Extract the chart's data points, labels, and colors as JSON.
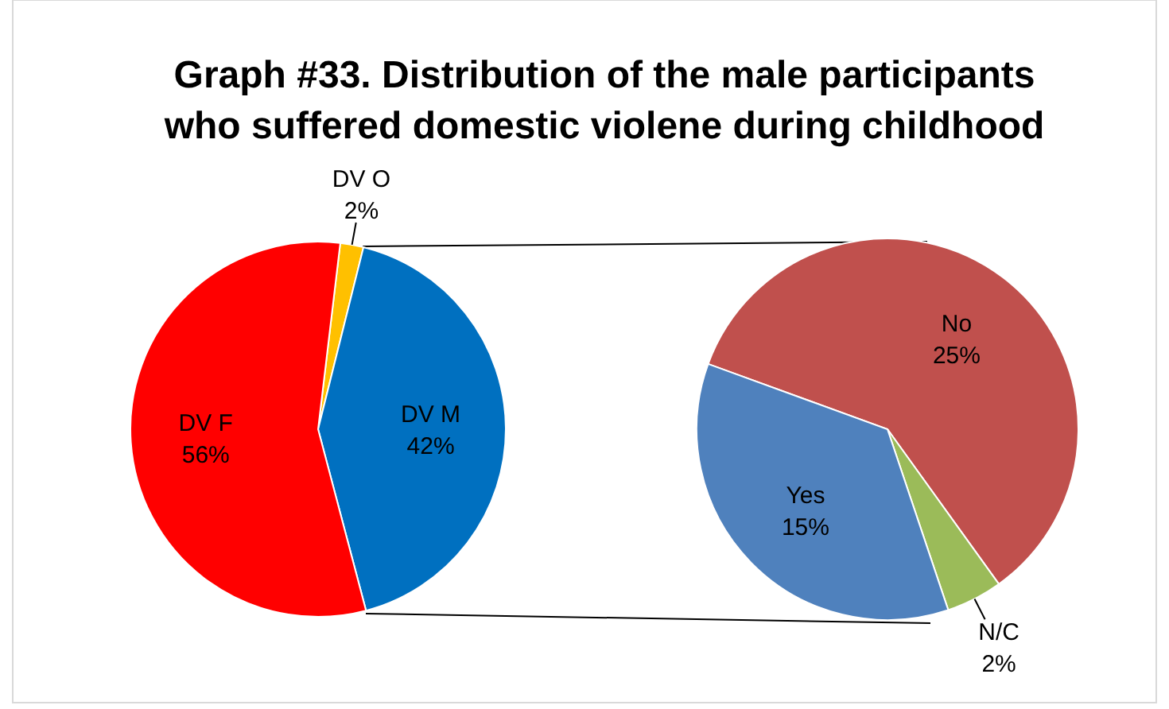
{
  "chart_data": [
    {
      "type": "pie",
      "title": "Graph #33. Distribution of the male participants who suffered domestic violene during childhood",
      "categories": [
        "DV O",
        "DV M",
        "DV F"
      ],
      "values": [
        2,
        42,
        56
      ],
      "colors": [
        "#ffc000",
        "#0070c0",
        "#ff0000"
      ],
      "value_labels": [
        "2%",
        "42%",
        "56%"
      ]
    },
    {
      "type": "pie",
      "categories": [
        "No",
        "N/C",
        "Yes"
      ],
      "values": [
        25,
        2,
        15
      ],
      "colors": [
        "#c0504d",
        "#9bbb59",
        "#4f81bd"
      ],
      "value_labels": [
        "25%",
        "2%",
        "15%"
      ]
    }
  ]
}
